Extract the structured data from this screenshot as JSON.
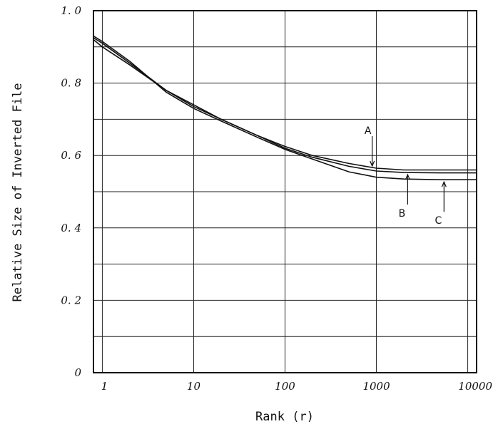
{
  "chart_data": {
    "type": "line",
    "title": "",
    "xlabel": "Rank (r)",
    "ylabel": "Relative Size of Inverted File",
    "xscale": "log",
    "xlim": [
      0.8,
      12500
    ],
    "ylim": [
      0,
      1.0
    ],
    "grid": true,
    "x_ticks": [
      {
        "value": 1,
        "label": "1"
      },
      {
        "value": 10,
        "label": "10"
      },
      {
        "value": 100,
        "label": "100"
      },
      {
        "value": 1000,
        "label": "1000"
      },
      {
        "value": 10000,
        "label": "10000"
      }
    ],
    "y_ticks": [
      {
        "value": 0,
        "label": "0"
      },
      {
        "value": 0.2,
        "label": "0. 2"
      },
      {
        "value": 0.4,
        "label": "0. 4"
      },
      {
        "value": 0.6,
        "label": "0. 6"
      },
      {
        "value": 0.8,
        "label": "0. 8"
      },
      {
        "value": 1.0,
        "label": "1. 0"
      }
    ],
    "series": [
      {
        "name": "A",
        "x": [
          0.8,
          1,
          2,
          5,
          10,
          20,
          50,
          100,
          200,
          500,
          1000,
          2000,
          5000,
          12500
        ],
        "values": [
          0.92,
          0.9,
          0.85,
          0.78,
          0.74,
          0.7,
          0.655,
          0.625,
          0.6,
          0.578,
          0.565,
          0.56,
          0.56,
          0.56
        ]
      },
      {
        "name": "B",
        "x": [
          0.8,
          1,
          2,
          5,
          10,
          20,
          50,
          100,
          200,
          500,
          1000,
          2000,
          5000,
          12500
        ],
        "values": [
          0.925,
          0.91,
          0.855,
          0.78,
          0.735,
          0.7,
          0.655,
          0.62,
          0.595,
          0.57,
          0.557,
          0.553,
          0.552,
          0.552
        ]
      },
      {
        "name": "C",
        "x": [
          0.8,
          1,
          2,
          5,
          10,
          20,
          50,
          100,
          200,
          500,
          1000,
          2000,
          5000,
          12500
        ],
        "values": [
          0.93,
          0.915,
          0.86,
          0.775,
          0.73,
          0.695,
          0.65,
          0.617,
          0.59,
          0.555,
          0.54,
          0.535,
          0.533,
          0.533
        ]
      }
    ],
    "annotations": [
      {
        "label": "A",
        "x": 900,
        "y": 0.565,
        "position": "above"
      },
      {
        "label": "B",
        "x": 2200,
        "y": 0.553,
        "position": "below"
      },
      {
        "label": "C",
        "x": 5500,
        "y": 0.533,
        "position": "below"
      }
    ]
  }
}
